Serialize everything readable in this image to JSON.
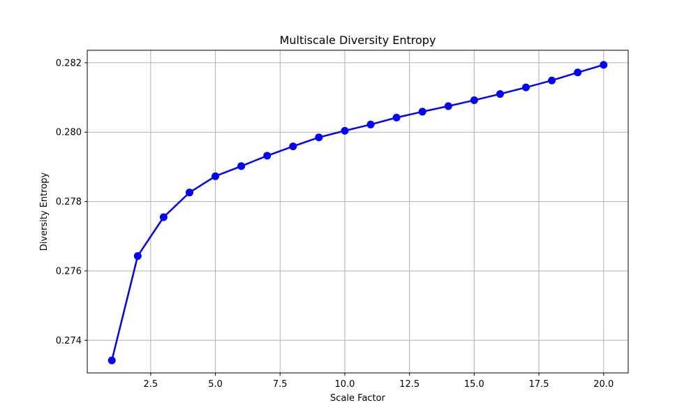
{
  "chart_data": {
    "type": "line",
    "title": "Multiscale Diversity Entropy",
    "xlabel": "Scale Factor",
    "ylabel": "Diversity Entropy",
    "xlim": [
      0.05,
      20.95
    ],
    "ylim": [
      0.27306,
      0.28236
    ],
    "x_ticks": [
      2.5,
      5.0,
      7.5,
      10.0,
      12.5,
      15.0,
      17.5,
      20.0
    ],
    "x_tick_labels": [
      "2.5",
      "5.0",
      "7.5",
      "10.0",
      "12.5",
      "15.0",
      "17.5",
      "20.0"
    ],
    "y_ticks": [
      0.274,
      0.276,
      0.278,
      0.28,
      0.282
    ],
    "y_tick_labels": [
      "0.274",
      "0.276",
      "0.278",
      "0.280",
      "0.282"
    ],
    "grid": true,
    "series": [
      {
        "color": "#0000ff",
        "marker": "circle",
        "x": [
          1,
          2,
          3,
          4,
          5,
          6,
          7,
          8,
          9,
          10,
          11,
          12,
          13,
          14,
          15,
          16,
          17,
          18,
          19,
          20
        ],
        "y": [
          0.27342,
          0.27643,
          0.27755,
          0.27826,
          0.27873,
          0.27902,
          0.27932,
          0.27959,
          0.27985,
          0.28004,
          0.28022,
          0.28042,
          0.28059,
          0.28075,
          0.28092,
          0.2811,
          0.28129,
          0.28149,
          0.28172,
          0.28194
        ]
      }
    ]
  }
}
